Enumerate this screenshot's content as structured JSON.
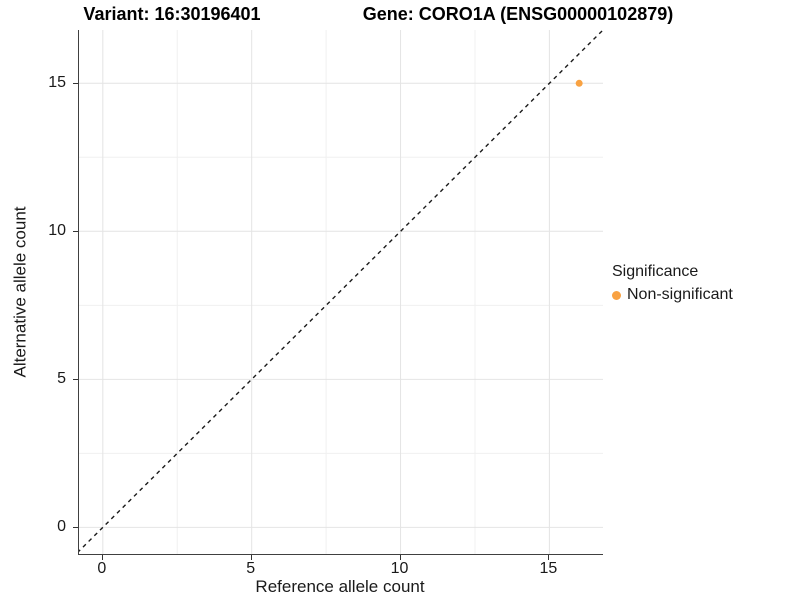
{
  "titles": {
    "variant": "Variant: 16:30196401",
    "gene": "Gene: CORO1A (ENSG00000102879)"
  },
  "chart_data": {
    "type": "scatter",
    "title_left": "Variant: 16:30196401",
    "title_right": "Gene: CORO1A (ENSG00000102879)",
    "xlabel": "Reference allele count",
    "ylabel": "Alternative allele count",
    "xlim": [
      -0.8,
      16.8
    ],
    "ylim": [
      -0.9,
      16.8
    ],
    "xticks": [
      0,
      5,
      10,
      15
    ],
    "yticks": [
      0,
      5,
      10,
      15
    ],
    "grid_major": [
      0,
      5,
      10,
      15
    ],
    "grid_minor": [
      2.5,
      7.5,
      12.5
    ],
    "grid": true,
    "identity_line": {
      "style": "dashed",
      "slope": 1,
      "intercept": 0,
      "color": "#1a1a1a"
    },
    "series": [
      {
        "name": "Non-significant",
        "color": "#F9A242",
        "points": [
          {
            "x": 16,
            "y": 15
          }
        ]
      }
    ],
    "legend": {
      "title": "Significance",
      "position": "right",
      "items": [
        {
          "label": "Non-significant",
          "color": "#F9A242"
        }
      ]
    }
  },
  "colors": {
    "point": "#F9A242",
    "grid_major": "#E4E4E4",
    "grid_minor": "#F0F0F0",
    "axis_line": "#404040",
    "tick": "#333333",
    "text": "#1a1a1a"
  }
}
